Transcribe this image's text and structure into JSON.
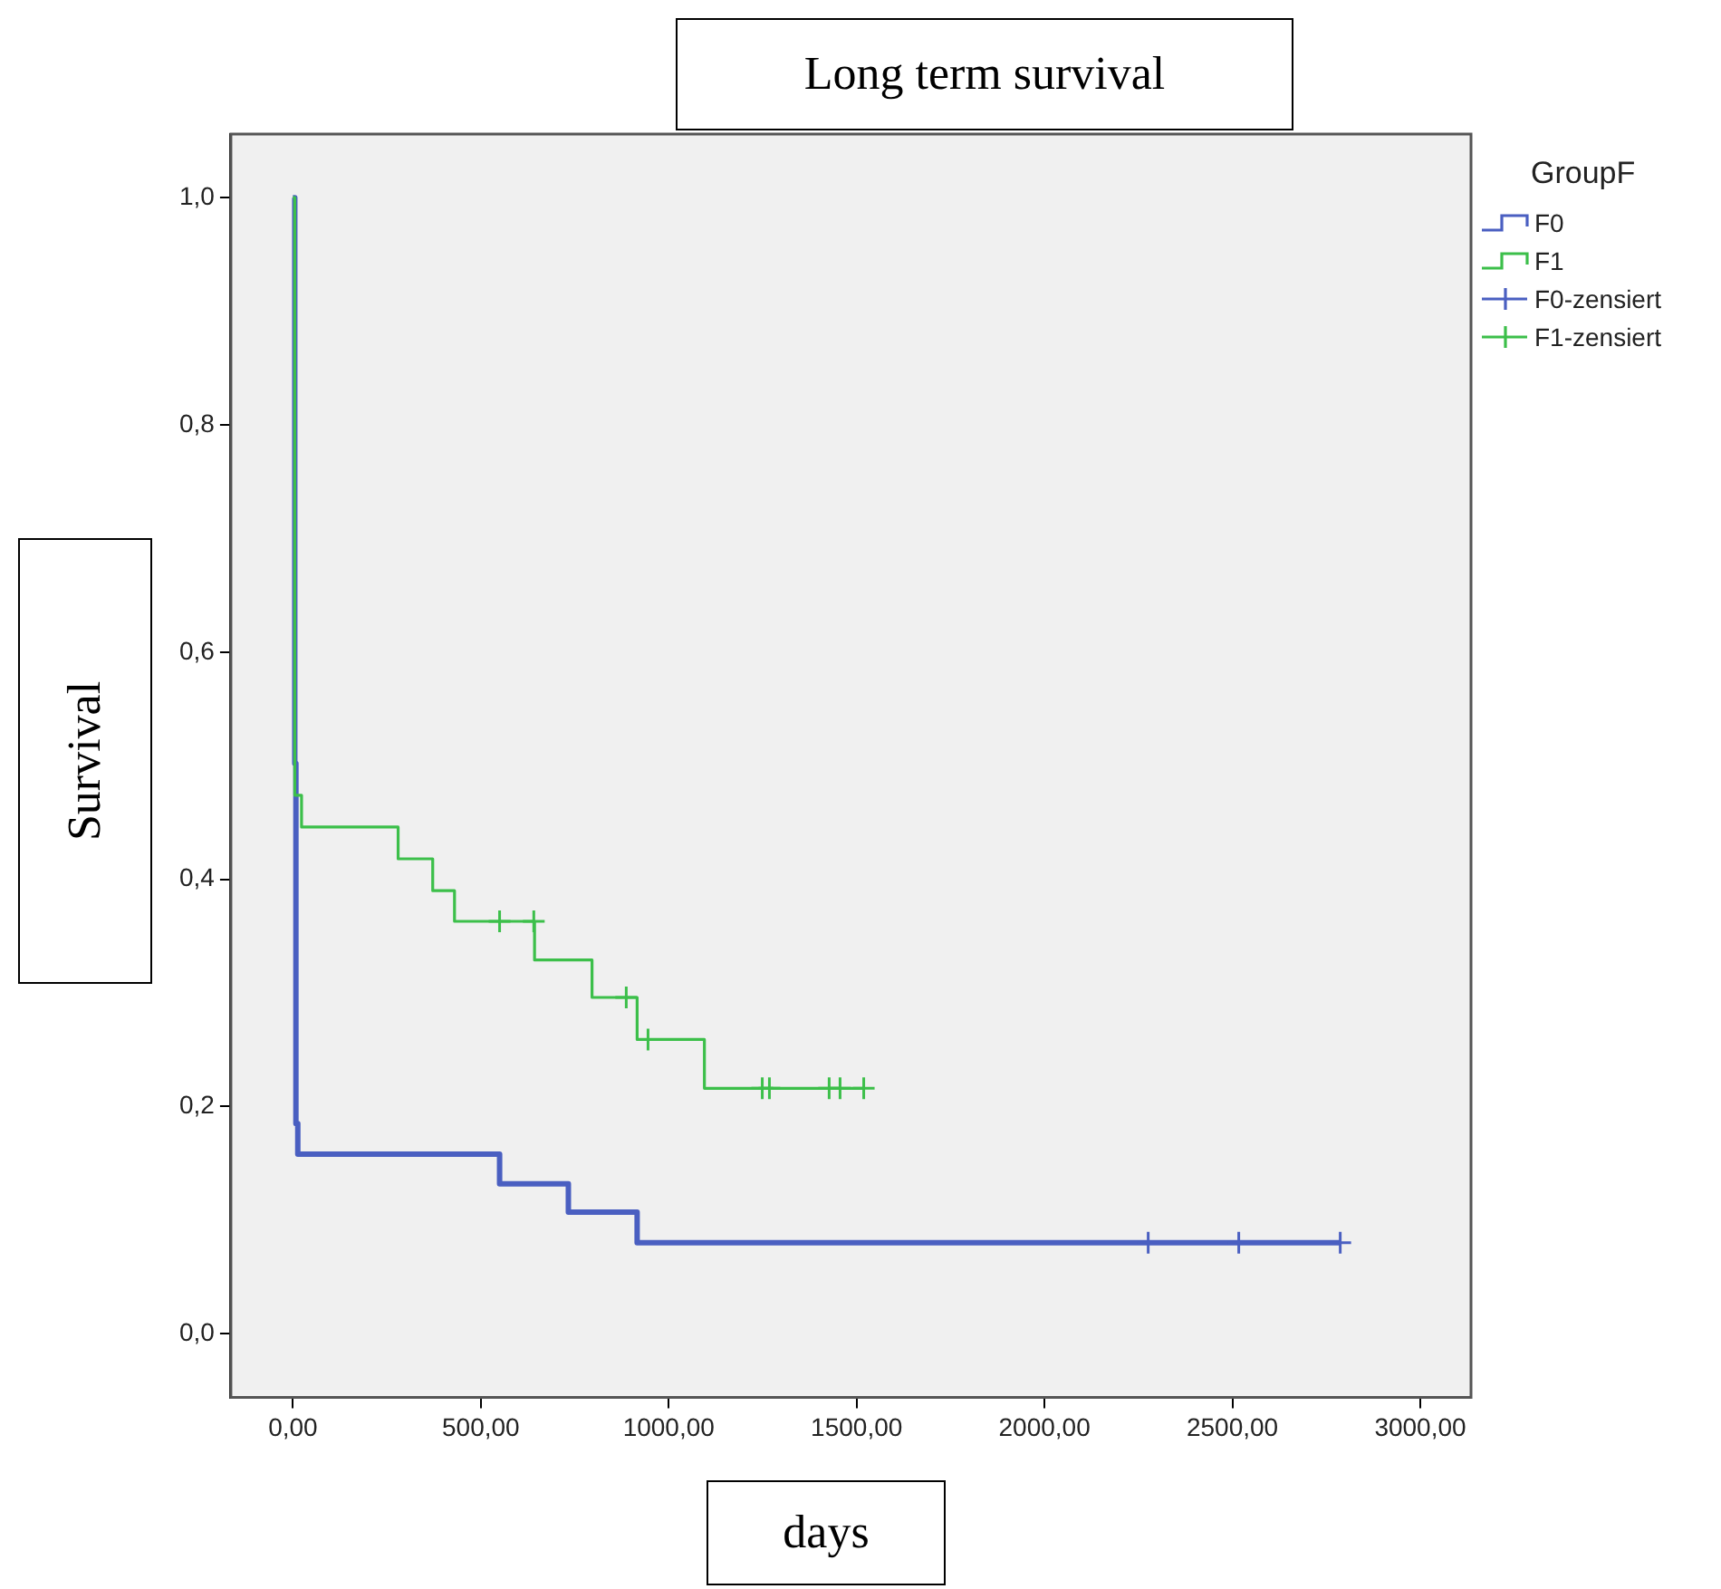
{
  "chart_data": {
    "type": "step",
    "title": "Long term survival",
    "xlabel": "days",
    "ylabel": "Survival",
    "legend_title": "GroupF",
    "legend": "right",
    "xlim": [
      -165,
      3135
    ],
    "ylim": [
      -0.056,
      1.056
    ],
    "xticks": [
      {
        "value": 0,
        "label": "0,00"
      },
      {
        "value": 500,
        "label": "500,00"
      },
      {
        "value": 1000,
        "label": "1000,00"
      },
      {
        "value": 1500,
        "label": "1500,00"
      },
      {
        "value": 2000,
        "label": "2000,00"
      },
      {
        "value": 2500,
        "label": "2500,00"
      },
      {
        "value": 3000,
        "label": "3000,00"
      }
    ],
    "yticks": [
      {
        "value": 0,
        "label": "0,0"
      },
      {
        "value": 0.2,
        "label": "0,2"
      },
      {
        "value": 0.4,
        "label": "0,4"
      },
      {
        "value": 0.6,
        "label": "0,6"
      },
      {
        "value": 0.8,
        "label": "0,8"
      },
      {
        "value": 1,
        "label": "1,0"
      }
    ],
    "grid": false,
    "series": [
      {
        "name": "F0",
        "color": "#4a5fc1",
        "x": [
          0,
          5,
          8,
          13,
          550,
          733,
          916,
          2787
        ],
        "values": [
          1,
          0.502,
          0.185,
          0.158,
          0.132,
          0.107,
          0.08,
          0.08
        ]
      },
      {
        "name": "F1",
        "color": "#3cbf4a",
        "x": [
          0,
          5,
          23,
          280,
          372,
          430,
          643,
          796,
          916,
          1095,
          1519
        ],
        "values": [
          1,
          0.474,
          0.446,
          0.418,
          0.39,
          0.363,
          0.329,
          0.296,
          0.259,
          0.216,
          0.216
        ]
      },
      {
        "name": "F0-zensiert",
        "type": "scatter",
        "marker": "cross",
        "color": "#4a5fc1",
        "x": [
          2276,
          2517,
          2787
        ],
        "values": [
          0.08,
          0.08,
          0.08
        ]
      },
      {
        "name": "F1-zensiert",
        "type": "scatter",
        "marker": "cross",
        "color": "#3cbf4a",
        "x": [
          550,
          641,
          887,
          945,
          1249,
          1268,
          1427,
          1456,
          1519
        ],
        "values": [
          0.363,
          0.363,
          0.296,
          0.259,
          0.216,
          0.216,
          0.216,
          0.216,
          0.216
        ]
      }
    ]
  }
}
